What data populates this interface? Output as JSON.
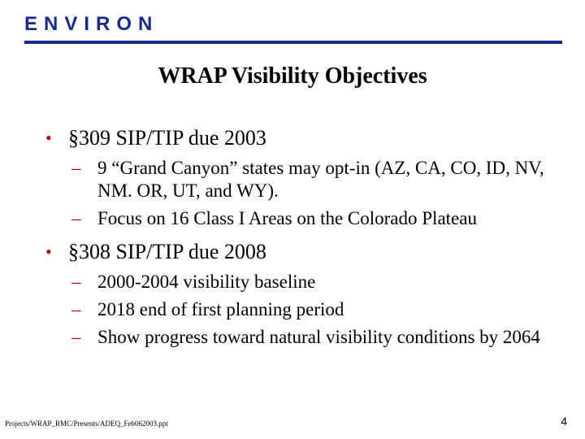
{
  "header": {
    "logo": "ENVIRON",
    "title": "WRAP Visibility Objectives"
  },
  "bullets": [
    {
      "text": "§309 SIP/TIP due 2003",
      "subs": [
        "9 “Grand Canyon” states may opt-in (AZ, CA, CO, ID, NV, NM. OR, UT, and WY).",
        "Focus on 16 Class I Areas on the Colorado Plateau"
      ]
    },
    {
      "text": "§308 SIP/TIP due 2008",
      "subs": [
        "2000-2004 visibility baseline",
        "2018 end of first planning period",
        "Show progress toward natural visibility conditions by 2064"
      ]
    }
  ],
  "footer": {
    "path": "Projects/WRAP_RMC/Presents/ADEQ_Feb062003.ppt",
    "page": "4"
  }
}
